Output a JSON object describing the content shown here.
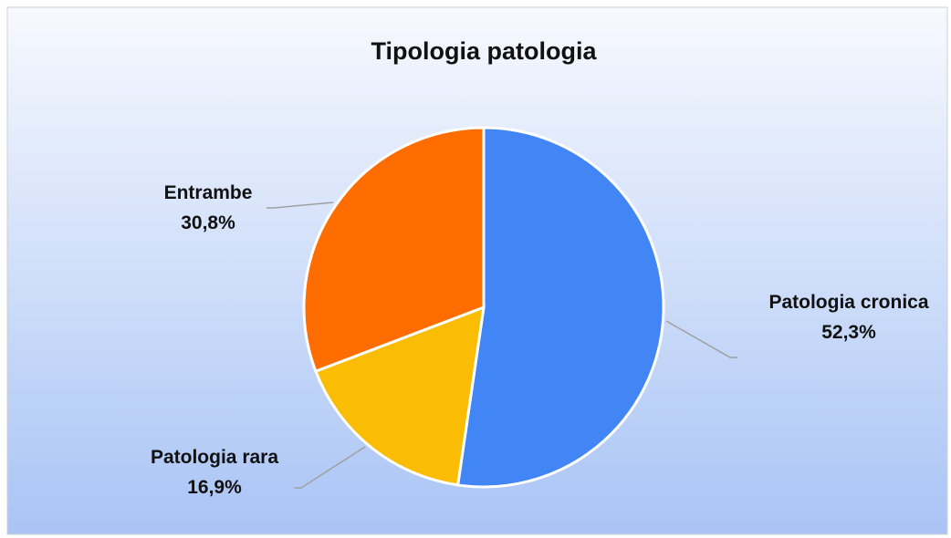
{
  "chart_data": {
    "type": "pie",
    "title": "Tipologia patologia",
    "categories": [
      "Patologia cronica",
      "Patologia rara",
      "Entrambe"
    ],
    "values": [
      52.3,
      16.9,
      30.8
    ],
    "value_labels": [
      "52,3%",
      "16,9%",
      "30,8%"
    ],
    "colors": [
      "#4285f4",
      "#fbbc04",
      "#ff6d01"
    ]
  }
}
